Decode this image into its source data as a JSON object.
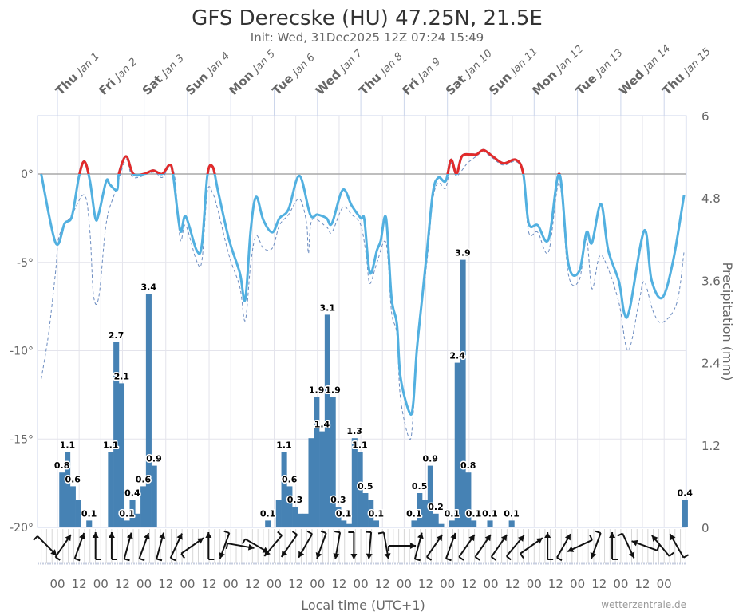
{
  "chart_data": {
    "type": "line+bar",
    "title": "GFS Derecske (HU) 47.25N, 21.5E",
    "subtitle": "Init: Wed, 31Dec2025 12Z 07:24 15:49",
    "xlabel": "Local time (UTC+1)",
    "credit": "wetterzentrale.de",
    "x_range": [
      "2025-12-31 13:00",
      "2026-01-15 13:00"
    ],
    "day_labels": [
      {
        "dow": "Thu",
        "date": "Jan 1",
        "t": "2026-01-01 00:00"
      },
      {
        "dow": "Fri",
        "date": "Jan 2",
        "t": "2026-01-02 00:00"
      },
      {
        "dow": "Sat",
        "date": "Jan 3",
        "t": "2026-01-03 00:00"
      },
      {
        "dow": "Sun",
        "date": "Jan 4",
        "t": "2026-01-04 00:00"
      },
      {
        "dow": "Mon",
        "date": "Jan 5",
        "t": "2026-01-05 00:00"
      },
      {
        "dow": "Tue",
        "date": "Jan 6",
        "t": "2026-01-06 00:00"
      },
      {
        "dow": "Wed",
        "date": "Jan 7",
        "t": "2026-01-07 00:00"
      },
      {
        "dow": "Thu",
        "date": "Jan 8",
        "t": "2026-01-08 00:00"
      },
      {
        "dow": "Fri",
        "date": "Jan 9",
        "t": "2026-01-09 00:00"
      },
      {
        "dow": "Sat",
        "date": "Jan 10",
        "t": "2026-01-10 00:00"
      },
      {
        "dow": "Sun",
        "date": "Jan 11",
        "t": "2026-01-11 00:00"
      },
      {
        "dow": "Mon",
        "date": "Jan 12",
        "t": "2026-01-12 00:00"
      },
      {
        "dow": "Tue",
        "date": "Jan 13",
        "t": "2026-01-13 00:00"
      },
      {
        "dow": "Wed",
        "date": "Jan 14",
        "t": "2026-01-14 00:00"
      },
      {
        "dow": "Thu",
        "date": "Jan 15",
        "t": "2026-01-15 00:00"
      }
    ],
    "hour_tick_labels": [
      "00",
      "12"
    ],
    "left_axis": {
      "ticks": [
        0,
        -5,
        -10,
        -15,
        -20
      ],
      "unit": "°",
      "range": [
        -20,
        3.3
      ]
    },
    "right_axis": {
      "title": "Precipitation (mm)",
      "ticks": [
        "0",
        "1.2",
        "2.4",
        "3.6",
        "4.8",
        "6"
      ],
      "range": [
        0,
        6
      ]
    },
    "colors": {
      "temperature": "#52b0e0",
      "above_zero": "#e32b2b",
      "dashed": "#6c8cc0",
      "bars": "#4682b4",
      "zero_line": "#a8a8a8",
      "grid": "#e4e4ec"
    },
    "temperature": [
      [
        "2025-12-31 15:00",
        0
      ],
      [
        "2025-12-31 23:00",
        -3.9
      ],
      [
        "2026-01-01 04:00",
        -2.8
      ],
      [
        "2026-01-01 08:00",
        -2.4
      ],
      [
        "2026-01-01 12:00",
        -0.1
      ],
      [
        "2026-01-01 15:00",
        0.7
      ],
      [
        "2026-01-01 18:00",
        -0.4
      ],
      [
        "2026-01-01 21:00",
        -2.5
      ],
      [
        "2026-01-01 23:00",
        -2.2
      ],
      [
        "2026-01-02 03:00",
        -0.4
      ],
      [
        "2026-01-02 05:00",
        -0.6
      ],
      [
        "2026-01-02 09:00",
        -0.9
      ],
      [
        "2026-01-02 10:00",
        0
      ],
      [
        "2026-01-02 14:00",
        1.0
      ],
      [
        "2026-01-02 18:00",
        0
      ],
      [
        "2026-01-03 00:00",
        0
      ],
      [
        "2026-01-03 05:00",
        0.2
      ],
      [
        "2026-01-03 10:00",
        0
      ],
      [
        "2026-01-03 14:00",
        0.5
      ],
      [
        "2026-01-03 16:00",
        0
      ],
      [
        "2026-01-03 20:00",
        -3.2
      ],
      [
        "2026-01-03 23:00",
        -2.4
      ],
      [
        "2026-01-04 05:00",
        -4.3
      ],
      [
        "2026-01-04 08:00",
        -4.0
      ],
      [
        "2026-01-04 11:00",
        -0.1
      ],
      [
        "2026-01-04 14:00",
        0.4
      ],
      [
        "2026-01-04 17:00",
        -1.0
      ],
      [
        "2026-01-04 23:00",
        -3.7
      ],
      [
        "2026-01-05 05:00",
        -5.6
      ],
      [
        "2026-01-05 08:00",
        -7.1
      ],
      [
        "2026-01-05 11:00",
        -3.2
      ],
      [
        "2026-01-05 14:00",
        -1.3
      ],
      [
        "2026-01-05 18:00",
        -2.6
      ],
      [
        "2026-01-05 23:00",
        -3.3
      ],
      [
        "2026-01-06 03:00",
        -2.5
      ],
      [
        "2026-01-06 08:00",
        -2.0
      ],
      [
        "2026-01-06 14:00",
        -0.1
      ],
      [
        "2026-01-06 20:00",
        -2.3
      ],
      [
        "2026-01-07 00:00",
        -2.3
      ],
      [
        "2026-01-07 05:00",
        -2.5
      ],
      [
        "2026-01-07 08:00",
        -2.8
      ],
      [
        "2026-01-07 14:00",
        -0.9
      ],
      [
        "2026-01-07 19:00",
        -1.8
      ],
      [
        "2026-01-08 00:00",
        -2.5
      ],
      [
        "2026-01-08 02:00",
        -2.6
      ],
      [
        "2026-01-08 05:00",
        -5.6
      ],
      [
        "2026-01-08 09:00",
        -4.3
      ],
      [
        "2026-01-08 11:00",
        -3.8
      ],
      [
        "2026-01-08 14:00",
        -2.5
      ],
      [
        "2026-01-08 17:00",
        -7.0
      ],
      [
        "2026-01-08 20:00",
        -8.5
      ],
      [
        "2026-01-08 22:00",
        -11.5
      ],
      [
        "2026-01-09 03:00",
        -13.5
      ],
      [
        "2026-01-09 05:00",
        -13.0
      ],
      [
        "2026-01-09 07:00",
        -10.0
      ],
      [
        "2026-01-09 10:00",
        -7.0
      ],
      [
        "2026-01-09 13:00",
        -4.0
      ],
      [
        "2026-01-09 16:00",
        -1.0
      ],
      [
        "2026-01-09 19:00",
        -0.2
      ],
      [
        "2026-01-09 23:00",
        -0.4
      ],
      [
        "2026-01-10 02:00",
        0.8
      ],
      [
        "2026-01-10 05:00",
        0
      ],
      [
        "2026-01-10 08:00",
        1.0
      ],
      [
        "2026-01-10 13:00",
        1.1
      ],
      [
        "2026-01-10 16:00",
        1.1
      ],
      [
        "2026-01-10 20:00",
        1.35
      ],
      [
        "2026-01-11 01:00",
        1.0
      ],
      [
        "2026-01-11 07:00",
        0.6
      ],
      [
        "2026-01-11 14:00",
        0.8
      ],
      [
        "2026-01-11 18:00",
        0
      ],
      [
        "2026-01-11 21:00",
        -2.8
      ],
      [
        "2026-01-12 02:00",
        -2.9
      ],
      [
        "2026-01-12 08:00",
        -3.7
      ],
      [
        "2026-01-12 14:00",
        0
      ],
      [
        "2026-01-12 19:00",
        -5.1
      ],
      [
        "2026-01-13 01:00",
        -5.5
      ],
      [
        "2026-01-13 05:00",
        -3.3
      ],
      [
        "2026-01-13 08:00",
        -3.9
      ],
      [
        "2026-01-13 13:00",
        -1.7
      ],
      [
        "2026-01-13 17:00",
        -4.3
      ],
      [
        "2026-01-13 23:00",
        -6.1
      ],
      [
        "2026-01-14 02:00",
        -7.9
      ],
      [
        "2026-01-14 05:00",
        -7.6
      ],
      [
        "2026-01-14 13:00",
        -3.2
      ],
      [
        "2026-01-14 17:00",
        -6.0
      ],
      [
        "2026-01-14 23:00",
        -7.0
      ],
      [
        "2026-01-15 05:00",
        -4.9
      ],
      [
        "2026-01-15 11:00",
        -1.2
      ]
    ],
    "dashed": [
      [
        "2025-12-31 15:00",
        -11.6
      ],
      [
        "2025-12-31 19:00",
        -9.1
      ],
      [
        "2025-12-31 23:00",
        -5.5
      ],
      [
        "2026-01-01 01:00",
        -3.5
      ],
      [
        "2026-01-01 08:00",
        -2.3
      ],
      [
        "2026-01-01 15:00",
        -1.2
      ],
      [
        "2026-01-01 18:00",
        -3.3
      ],
      [
        "2026-01-01 20:00",
        -6.9
      ],
      [
        "2026-01-01 23:00",
        -6.9
      ],
      [
        "2026-01-02 03:00",
        -2.8
      ],
      [
        "2026-01-02 08:00",
        -1.0
      ],
      [
        "2026-01-02 14:00",
        0.8
      ],
      [
        "2026-01-02 18:00",
        -0.2
      ],
      [
        "2026-01-03 05:00",
        0.1
      ],
      [
        "2026-01-03 10:00",
        -0.2
      ],
      [
        "2026-01-03 14:00",
        0.4
      ],
      [
        "2026-01-03 17:00",
        -0.2
      ],
      [
        "2026-01-03 20:00",
        -3.7
      ],
      [
        "2026-01-03 23:00",
        -2.9
      ],
      [
        "2026-01-04 05:00",
        -4.9
      ],
      [
        "2026-01-04 08:00",
        -4.9
      ],
      [
        "2026-01-04 11:00",
        -1.0
      ],
      [
        "2026-01-04 14:00",
        -1.1
      ],
      [
        "2026-01-04 17:00",
        -2.1
      ],
      [
        "2026-01-04 23:00",
        -4.6
      ],
      [
        "2026-01-05 05:00",
        -6.4
      ],
      [
        "2026-01-05 08:00",
        -8.3
      ],
      [
        "2026-01-05 11:00",
        -5.1
      ],
      [
        "2026-01-05 14:00",
        -3.5
      ],
      [
        "2026-01-05 18:00",
        -4.2
      ],
      [
        "2026-01-05 23:00",
        -4.2
      ],
      [
        "2026-01-06 03:00",
        -2.9
      ],
      [
        "2026-01-06 08:00",
        -2.3
      ],
      [
        "2026-01-06 14:00",
        -1.4
      ],
      [
        "2026-01-06 18:00",
        -2.8
      ],
      [
        "2026-01-06 19:00",
        -4.5
      ],
      [
        "2026-01-06 21:00",
        -2.6
      ],
      [
        "2026-01-07 05:00",
        -3.0
      ],
      [
        "2026-01-07 08:00",
        -3.3
      ],
      [
        "2026-01-07 14:00",
        -1.9
      ],
      [
        "2026-01-07 19:00",
        -2.3
      ],
      [
        "2026-01-08 00:00",
        -2.9
      ],
      [
        "2026-01-08 03:00",
        -4.6
      ],
      [
        "2026-01-08 05:00",
        -6.2
      ],
      [
        "2026-01-08 09:00",
        -5.0
      ],
      [
        "2026-01-08 14:00",
        -3.9
      ],
      [
        "2026-01-08 17:00",
        -7.8
      ],
      [
        "2026-01-08 20:00",
        -9.1
      ],
      [
        "2026-01-08 22:00",
        -12.7
      ],
      [
        "2026-01-09 03:00",
        -15.0
      ],
      [
        "2026-01-09 05:00",
        -13.6
      ],
      [
        "2026-01-09 07:00",
        -10.0
      ],
      [
        "2026-01-09 10:00",
        -7.3
      ],
      [
        "2026-01-09 13:00",
        -4.6
      ],
      [
        "2026-01-09 16:00",
        -1.4
      ],
      [
        "2026-01-09 19:00",
        -0.5
      ],
      [
        "2026-01-09 23:00",
        -0.8
      ],
      [
        "2026-01-10 02:00",
        0.6
      ],
      [
        "2026-01-10 05:00",
        -0.1
      ],
      [
        "2026-01-10 11:00",
        0.6
      ],
      [
        "2026-01-10 16:00",
        1.0
      ],
      [
        "2026-01-10 20:00",
        1.25
      ],
      [
        "2026-01-11 01:00",
        0.9
      ],
      [
        "2026-01-11 07:00",
        0.5
      ],
      [
        "2026-01-11 14:00",
        0.7
      ],
      [
        "2026-01-11 18:00",
        -0.1
      ],
      [
        "2026-01-11 21:00",
        -3.3
      ],
      [
        "2026-01-12 02:00",
        -3.3
      ],
      [
        "2026-01-12 08:00",
        -4.4
      ],
      [
        "2026-01-12 14:00",
        -0.5
      ],
      [
        "2026-01-12 19:00",
        -5.7
      ],
      [
        "2026-01-13 01:00",
        -6.0
      ],
      [
        "2026-01-13 05:00",
        -3.7
      ],
      [
        "2026-01-13 08:00",
        -6.5
      ],
      [
        "2026-01-13 12:00",
        -4.7
      ],
      [
        "2026-01-13 16:00",
        -5.1
      ],
      [
        "2026-01-13 23:00",
        -7.3
      ],
      [
        "2026-01-14 04:00",
        -10.0
      ],
      [
        "2026-01-14 10:00",
        -7.3
      ],
      [
        "2026-01-14 13:00",
        -6.1
      ],
      [
        "2026-01-14 18:00",
        -7.8
      ],
      [
        "2026-01-14 23:00",
        -8.4
      ],
      [
        "2026-01-15 07:00",
        -7.3
      ],
      [
        "2026-01-15 11:00",
        -4.4
      ]
    ],
    "precipitation_3h": [
      {
        "t": "2026-01-01 01:00",
        "v": 0.8,
        "label": "0.8"
      },
      {
        "t": "2026-01-01 04:00",
        "v": 1.1,
        "label": "1.1"
      },
      {
        "t": "2026-01-01 07:00",
        "v": 0.6,
        "label": "0.6"
      },
      {
        "t": "2026-01-01 10:00",
        "v": 0.4,
        "label": ""
      },
      {
        "t": "2026-01-01 16:00",
        "v": 0.1,
        "label": "0.1"
      },
      {
        "t": "2026-01-02 04:00",
        "v": 1.1,
        "label": "1.1"
      },
      {
        "t": "2026-01-02 07:00",
        "v": 2.7,
        "label": "2.7"
      },
      {
        "t": "2026-01-02 10:00",
        "v": 2.1,
        "label": "2.1"
      },
      {
        "t": "2026-01-02 13:00",
        "v": 0.1,
        "label": "0.1"
      },
      {
        "t": "2026-01-02 16:00",
        "v": 0.4,
        "label": "0.4"
      },
      {
        "t": "2026-01-02 19:00",
        "v": 0.2,
        "label": ""
      },
      {
        "t": "2026-01-02 22:00",
        "v": 0.6,
        "label": "0.6"
      },
      {
        "t": "2026-01-03 01:00",
        "v": 3.4,
        "label": "3.4"
      },
      {
        "t": "2026-01-03 04:00",
        "v": 0.9,
        "label": "0.9"
      },
      {
        "t": "2026-01-05 19:00",
        "v": 0.1,
        "label": "0.1"
      },
      {
        "t": "2026-01-06 01:00",
        "v": 0.4,
        "label": ""
      },
      {
        "t": "2026-01-06 04:00",
        "v": 1.1,
        "label": "1.1"
      },
      {
        "t": "2026-01-06 07:00",
        "v": 0.6,
        "label": "0.6"
      },
      {
        "t": "2026-01-06 10:00",
        "v": 0.3,
        "label": "0.3"
      },
      {
        "t": "2026-01-06 13:00",
        "v": 0.2,
        "label": ""
      },
      {
        "t": "2026-01-06 16:00",
        "v": 0.2,
        "label": ""
      },
      {
        "t": "2026-01-06 19:00",
        "v": 1.3,
        "label": ""
      },
      {
        "t": "2026-01-06 22:00",
        "v": 1.9,
        "label": "1.9"
      },
      {
        "t": "2026-01-07 01:00",
        "v": 1.4,
        "label": "1.4"
      },
      {
        "t": "2026-01-07 04:00",
        "v": 3.1,
        "label": "3.1"
      },
      {
        "t": "2026-01-07 07:00",
        "v": 1.9,
        "label": "1.9"
      },
      {
        "t": "2026-01-07 10:00",
        "v": 0.3,
        "label": "0.3"
      },
      {
        "t": "2026-01-07 13:00",
        "v": 0.1,
        "label": "0.1"
      },
      {
        "t": "2026-01-07 16:00",
        "v": 0.05,
        "label": ""
      },
      {
        "t": "2026-01-07 19:00",
        "v": 1.3,
        "label": "1.3"
      },
      {
        "t": "2026-01-07 22:00",
        "v": 1.1,
        "label": "1.1"
      },
      {
        "t": "2026-01-08 01:00",
        "v": 0.5,
        "label": "0.5"
      },
      {
        "t": "2026-01-08 04:00",
        "v": 0.4,
        "label": ""
      },
      {
        "t": "2026-01-08 07:00",
        "v": 0.1,
        "label": "0.1"
      },
      {
        "t": "2026-01-09 04:00",
        "v": 0.1,
        "label": "0.1"
      },
      {
        "t": "2026-01-09 07:00",
        "v": 0.5,
        "label": "0.5"
      },
      {
        "t": "2026-01-09 10:00",
        "v": 0.4,
        "label": ""
      },
      {
        "t": "2026-01-09 13:00",
        "v": 0.9,
        "label": "0.9"
      },
      {
        "t": "2026-01-09 16:00",
        "v": 0.2,
        "label": "0.2"
      },
      {
        "t": "2026-01-09 19:00",
        "v": 0.05,
        "label": ""
      },
      {
        "t": "2026-01-10 01:00",
        "v": 0.1,
        "label": "0.1"
      },
      {
        "t": "2026-01-10 04:00",
        "v": 2.4,
        "label": "2.4"
      },
      {
        "t": "2026-01-10 07:00",
        "v": 3.9,
        "label": "3.9"
      },
      {
        "t": "2026-01-10 10:00",
        "v": 0.8,
        "label": "0.8"
      },
      {
        "t": "2026-01-10 13:00",
        "v": 0.1,
        "label": "0.1"
      },
      {
        "t": "2026-01-10 22:00",
        "v": 0.1,
        "label": "0.1"
      },
      {
        "t": "2026-01-11 10:00",
        "v": 0.1,
        "label": "0.1"
      },
      {
        "t": "2026-01-15 10:00",
        "v": 0.4,
        "label": "0.4"
      }
    ],
    "wind_directions_deg": [
      135,
      35,
      20,
      0,
      0,
      15,
      20,
      15,
      25,
      55,
      0,
      200,
      100,
      120,
      220,
      215,
      210,
      200,
      190,
      180,
      185,
      170,
      90,
      15,
      35,
      20,
      35,
      35,
      35,
      40,
      55,
      0,
      30,
      245,
      200,
      0,
      155,
      290,
      320,
      330
    ]
  }
}
